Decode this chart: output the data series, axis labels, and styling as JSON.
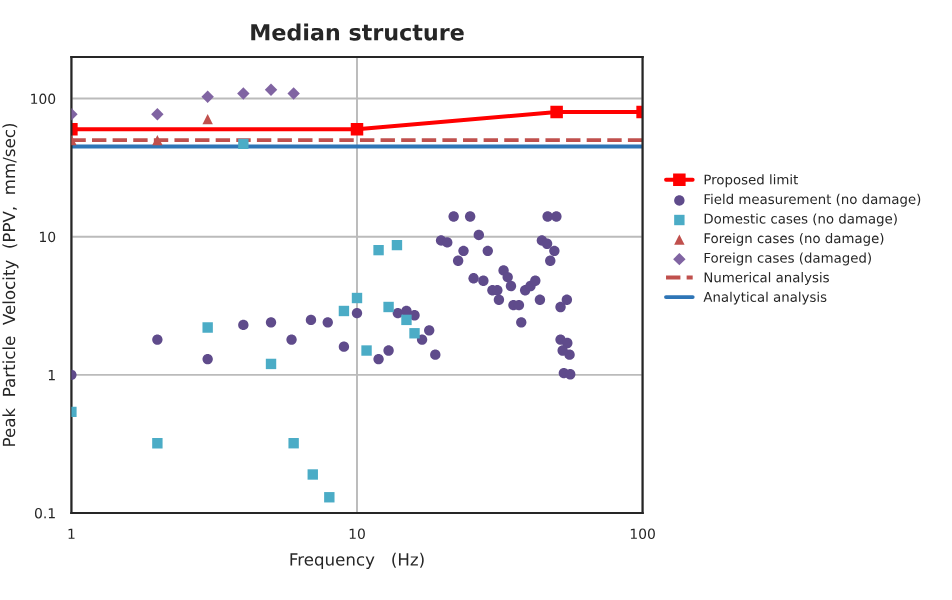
{
  "chart_data": {
    "type": "scatter",
    "title": "Median structure",
    "xlabel": "Frequency   (Hz)",
    "ylabel": "Peak  Particle  Velocity  (PPV,  mm/sec)",
    "log": "xy",
    "xlim": [
      1,
      100
    ],
    "ylim": [
      0.1,
      200
    ],
    "xticks": [
      1,
      10,
      100
    ],
    "yticks": [
      0.1,
      1,
      10,
      100
    ],
    "grid": true,
    "legend": "right",
    "series": [
      {
        "name": "Proposed limit",
        "type": "line",
        "color": "#ff0000",
        "marker": "square",
        "line_style": "solid",
        "x": [
          1,
          10,
          50,
          100
        ],
        "values": [
          60,
          60,
          80,
          80
        ]
      },
      {
        "name": "Field measurement (no damage)",
        "color": "#5f4b8b",
        "marker": "circle",
        "x": [
          1,
          2,
          3,
          4,
          5,
          5.9,
          6.9,
          7.9,
          9,
          10,
          13.9,
          14.9,
          15.9,
          16.9,
          17.9,
          11.9,
          12.9,
          18.8,
          21.8,
          24.9,
          19.7,
          20.7,
          26.7,
          23.6,
          28.7,
          22.6,
          25.6,
          27.7,
          29.8,
          31,
          32.6,
          33.7,
          34.6,
          31.4,
          35.3,
          36.9,
          37.6,
          38.8,
          40.5,
          42.1,
          43.7,
          46.5,
          49.9,
          44.4,
          46.3,
          49.1,
          47.5,
          51.6,
          54.3,
          51.6,
          54.5,
          55.5,
          52.5,
          53,
          55.8
        ],
        "values": [
          1.0,
          1.8,
          1.3,
          2.3,
          2.4,
          1.8,
          2.5,
          2.4,
          1.6,
          2.8,
          2.8,
          2.9,
          2.7,
          1.8,
          2.1,
          1.3,
          1.5,
          1.4,
          14,
          14,
          9.4,
          9.1,
          10.3,
          7.9,
          7.9,
          6.7,
          5.0,
          4.8,
          4.1,
          4.1,
          5.7,
          5.1,
          4.4,
          3.5,
          3.2,
          3.2,
          2.4,
          4.1,
          4.4,
          4.8,
          3.5,
          14,
          14,
          9.4,
          8.9,
          7.9,
          6.7,
          3.1,
          3.5,
          1.8,
          1.7,
          1.4,
          1.5,
          1.03,
          1.01
        ]
      },
      {
        "name": "Domestic cases (no damage)",
        "color": "#4bacc6",
        "marker": "square",
        "x": [
          1,
          2,
          3,
          4,
          5,
          6,
          7,
          8,
          9,
          10,
          10.8,
          11.9,
          12.9,
          13.8,
          14.9,
          15.9
        ],
        "values": [
          0.54,
          0.32,
          2.2,
          47,
          1.2,
          0.32,
          0.19,
          0.13,
          2.9,
          3.6,
          1.5,
          8.0,
          3.1,
          8.7,
          2.5,
          2.0
        ]
      },
      {
        "name": "Foreign cases (no damage)",
        "color": "#c0504d",
        "marker": "triangle",
        "x": [
          1,
          2,
          3
        ],
        "values": [
          50,
          50,
          71
        ]
      },
      {
        "name": "Foreign cases (damaged)",
        "color": "#8064a2",
        "marker": "diamond",
        "x": [
          1,
          2,
          3,
          4,
          5,
          6
        ],
        "values": [
          77,
          77,
          103,
          109,
          116,
          109
        ]
      },
      {
        "name": "Numerical analysis",
        "type": "line",
        "color": "#c0504d",
        "marker": "none",
        "line_style": "dashed",
        "x": [
          1,
          100
        ],
        "values": [
          50,
          50
        ]
      },
      {
        "name": "Analytical analysis",
        "type": "line",
        "color": "#2e75b6",
        "marker": "none",
        "line_style": "solid",
        "x": [
          1,
          100
        ],
        "values": [
          45,
          45
        ]
      }
    ]
  }
}
